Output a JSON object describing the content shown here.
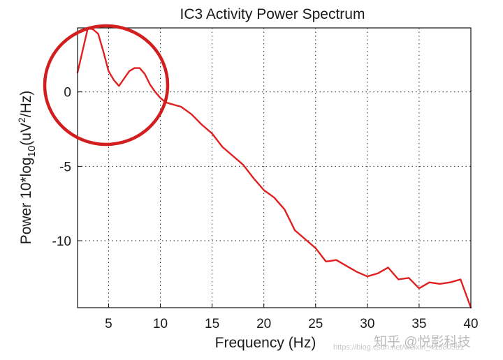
{
  "chart_data": {
    "type": "line",
    "title": "IC3 Activity Power Spectrum",
    "xlabel": "Frequency (Hz)",
    "ylabel": {
      "prefix": "Power 10*log",
      "sub": "10",
      "mid": "(uV",
      "sup": "2",
      "suffix": "/Hz)"
    },
    "xlim": [
      2,
      40
    ],
    "ylim": [
      -14.5,
      4.3
    ],
    "x_ticks": [
      5,
      10,
      15,
      20,
      25,
      30,
      35,
      40
    ],
    "y_ticks": [
      0,
      -5,
      -10
    ],
    "grid": true,
    "series": [
      {
        "color": "#e02020",
        "x": [
          2,
          2.5,
          3,
          3.5,
          4,
          4.5,
          5,
          5.5,
          6,
          6.5,
          7,
          7.5,
          8,
          8.5,
          9,
          9.5,
          10,
          10.5,
          11,
          12,
          13,
          14,
          15,
          16,
          17,
          18,
          19,
          20,
          21,
          22,
          23,
          24,
          25,
          26,
          27,
          28,
          29,
          30,
          31,
          32,
          33,
          34,
          35,
          36,
          37,
          38,
          39,
          40
        ],
        "y": [
          1.3,
          2.8,
          4.3,
          4.2,
          3.9,
          2.7,
          1.4,
          0.8,
          0.4,
          0.9,
          1.4,
          1.6,
          1.6,
          1.2,
          0.5,
          0.0,
          -0.4,
          -0.7,
          -0.8,
          -1.0,
          -1.5,
          -2.2,
          -2.8,
          -3.7,
          -4.3,
          -4.9,
          -5.8,
          -6.6,
          -7.1,
          -7.9,
          -9.3,
          -9.9,
          -10.5,
          -11.4,
          -11.3,
          -11.7,
          -12.1,
          -12.4,
          -12.2,
          -11.8,
          -12.6,
          -12.5,
          -13.2,
          -12.8,
          -12.9,
          -12.8,
          -12.6,
          -14.5
        ]
      }
    ]
  },
  "annotation": {
    "color": "#d21e1e"
  },
  "watermark": {
    "logo": "知乎 @悦影科技",
    "url": "https://blog.csdn.net/weixin_41880581"
  }
}
